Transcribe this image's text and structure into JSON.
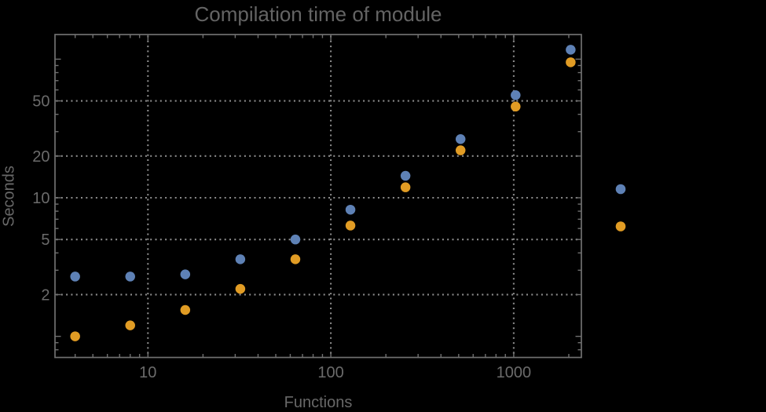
{
  "page": {
    "background_color": "#000000"
  },
  "chart_data": {
    "type": "scatter",
    "title": "Compilation time of module",
    "xlabel": "Functions",
    "ylabel": "Seconds",
    "x": [
      4,
      8,
      16,
      32,
      64,
      128,
      256,
      512,
      1024,
      2048
    ],
    "series": [
      {
        "name": "series-1-blue",
        "color": "#5e81b5",
        "values": [
          2.7,
          2.7,
          2.8,
          3.6,
          5.0,
          8.2,
          14.4,
          26.5,
          55,
          117
        ]
      },
      {
        "name": "series-2-orange",
        "color": "#e19c24",
        "values": [
          1.0,
          1.2,
          1.55,
          2.2,
          3.6,
          6.3,
          11.9,
          22,
          45.5,
          95
        ]
      }
    ],
    "axes": {
      "x_scale": "log",
      "y_scale": "log",
      "xlim": [
        3.1,
        2370
      ],
      "ylim": [
        0.71,
        150
      ],
      "x_major_ticks": [
        10,
        100,
        1000
      ],
      "x_tick_labels": [
        "10",
        "100",
        "1000"
      ],
      "x_minor_ticks": [
        4,
        5,
        6,
        7,
        8,
        9,
        20,
        30,
        40,
        50,
        60,
        70,
        80,
        90,
        200,
        300,
        400,
        500,
        600,
        700,
        800,
        900,
        2000
      ],
      "y_major_ticks": [
        1,
        2,
        5,
        10,
        20,
        50,
        100
      ],
      "y_labeled_ticks": [
        2,
        5,
        10,
        20,
        50
      ],
      "y_tick_labels": [
        "2",
        "5",
        "10",
        "20",
        "50"
      ],
      "y_minor_ticks": [
        0.8,
        0.9,
        3,
        4,
        6,
        7,
        8,
        9,
        30,
        40,
        60,
        70,
        80,
        90
      ],
      "grid_x": [
        10,
        100,
        1000
      ],
      "grid_y": [
        2,
        5,
        10,
        20,
        50
      ],
      "grid_style": "dotted"
    },
    "legend": {
      "position": "outside-right",
      "labels_visible": false,
      "entries": [
        {
          "marker_color": "#5e81b5",
          "label": ""
        },
        {
          "marker_color": "#e19c24",
          "label": ""
        }
      ]
    },
    "style_colors": {
      "frame": "#707070",
      "grid": "#8c8c8c",
      "text": "#6b6b6b",
      "title_text": "#646464"
    }
  }
}
